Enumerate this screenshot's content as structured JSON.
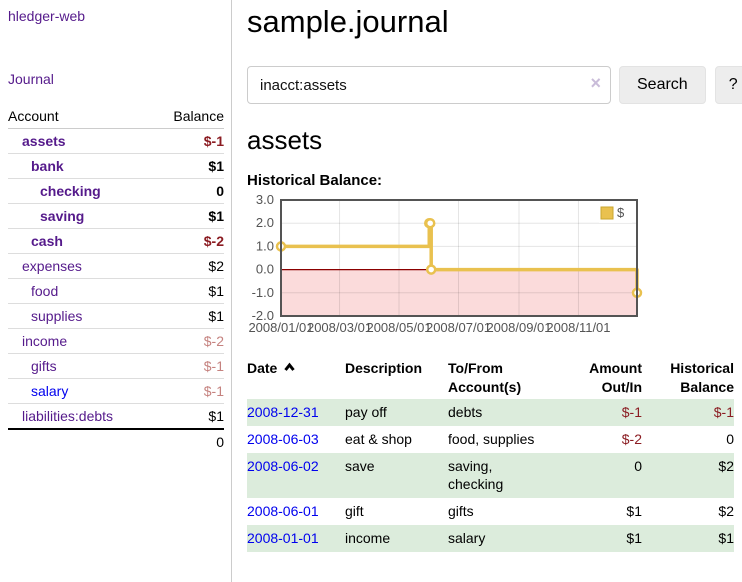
{
  "app": {
    "title": "hledger-web"
  },
  "colors": {
    "purple_link": "#551a8b",
    "blue_link": "#0000ee",
    "negative": "#8b1c22",
    "negative_faded": "#c5827f",
    "row_stripe_green": "#dcecdc"
  },
  "sidebar": {
    "journal_label": "Journal",
    "headers": [
      "Account",
      "Balance"
    ],
    "accounts": [
      {
        "name": "assets",
        "balance": "$-1",
        "level": 1,
        "strong": true,
        "bal_class": "neg",
        "unvisited": false
      },
      {
        "name": "bank",
        "balance": "$1",
        "level": 2,
        "strong": true,
        "bal_class": "",
        "unvisited": false
      },
      {
        "name": "checking",
        "balance": "0",
        "level": 3,
        "strong": true,
        "bal_class": "",
        "unvisited": false
      },
      {
        "name": "saving",
        "balance": "$1",
        "level": 3,
        "strong": true,
        "bal_class": "",
        "unvisited": false
      },
      {
        "name": "cash",
        "balance": "$-2",
        "level": 2,
        "strong": true,
        "bal_class": "neg",
        "unvisited": false
      },
      {
        "name": "expenses",
        "balance": "$2",
        "level": 1,
        "strong": false,
        "bal_class": "",
        "unvisited": false
      },
      {
        "name": "food",
        "balance": "$1",
        "level": 2,
        "strong": false,
        "bal_class": "",
        "unvisited": false
      },
      {
        "name": "supplies",
        "balance": "$1",
        "level": 2,
        "strong": false,
        "bal_class": "",
        "unvisited": false
      },
      {
        "name": "income",
        "balance": "$-2",
        "level": 1,
        "strong": false,
        "bal_class": "neg-faded",
        "unvisited": false
      },
      {
        "name": "gifts",
        "balance": "$-1",
        "level": 2,
        "strong": false,
        "bal_class": "neg-faded",
        "unvisited": false
      },
      {
        "name": "salary",
        "balance": "$-1",
        "level": 2,
        "strong": false,
        "bal_class": "neg-faded",
        "unvisited": true
      },
      {
        "name": "liabilities:debts",
        "balance": "$1",
        "level": 1,
        "strong": false,
        "bal_class": "",
        "unvisited": false
      }
    ],
    "total": "0"
  },
  "main": {
    "title": "sample.journal",
    "search": {
      "value": "inacct:assets",
      "clear_label": "×",
      "button_label": "Search",
      "help_label": "?"
    },
    "account_heading": "assets",
    "chart_label": "Historical Balance:"
  },
  "chart_data": {
    "type": "line",
    "title": "Historical Balance",
    "series": [
      {
        "name": "$",
        "color": "#e9c14f",
        "step": true,
        "points": [
          [
            "2008-01-01",
            1
          ],
          [
            "2008-06-01",
            2
          ],
          [
            "2008-06-02",
            2
          ],
          [
            "2008-06-03",
            0
          ],
          [
            "2008-12-31",
            -1
          ]
        ]
      }
    ],
    "xlim": [
      "2008-01-01",
      "2008-12-31"
    ],
    "ylim": [
      -2,
      3
    ],
    "y_ticks": [
      3.0,
      2.0,
      1.0,
      0.0,
      -1.0,
      -2.0
    ],
    "x_ticks": [
      {
        "date": "2008-01-01",
        "label": "2008/01/01"
      },
      {
        "date": "2008-03-01",
        "label": "2008/03/01"
      },
      {
        "date": "2008-05-01",
        "label": "2008/05/01"
      },
      {
        "date": "2008-07-01",
        "label": "2008/07/01"
      },
      {
        "date": "2008-09-01",
        "label": "2008/09/01"
      },
      {
        "date": "2008-11-01",
        "label": "2008/11/01"
      }
    ],
    "grid": true,
    "legend_position": "top-right",
    "legend": [
      "$"
    ],
    "negative_region_color": "#fbdbdb",
    "zero_line_color": "#8b0000",
    "axis_text_color": "#545454",
    "border_color": "#545454"
  },
  "register": {
    "headers": [
      {
        "label": "Date",
        "align": "left",
        "sort_icon": "chevron-up"
      },
      {
        "label": "Description",
        "align": "left"
      },
      {
        "label": "To/From Account(s)",
        "align": "left"
      },
      {
        "label": "Amount Out/In",
        "align": "right"
      },
      {
        "label": "Historical Balance",
        "align": "right"
      }
    ],
    "rows": [
      {
        "date": "2008-12-31",
        "description": "pay off",
        "accounts": "debts",
        "amount": "$-1",
        "balance": "$-1",
        "amount_neg": true,
        "balance_neg": true
      },
      {
        "date": "2008-06-03",
        "description": "eat & shop",
        "accounts": "food, supplies",
        "amount": "$-2",
        "balance": "0",
        "amount_neg": true,
        "balance_neg": false
      },
      {
        "date": "2008-06-02",
        "description": "save",
        "accounts": "saving, checking",
        "amount": "0",
        "balance": "$2",
        "amount_neg": false,
        "balance_neg": false
      },
      {
        "date": "2008-06-01",
        "description": "gift",
        "accounts": "gifts",
        "amount": "$1",
        "balance": "$2",
        "amount_neg": false,
        "balance_neg": false
      },
      {
        "date": "2008-01-01",
        "description": "income",
        "accounts": "salary",
        "amount": "$1",
        "balance": "$1",
        "amount_neg": false,
        "balance_neg": false
      }
    ]
  }
}
